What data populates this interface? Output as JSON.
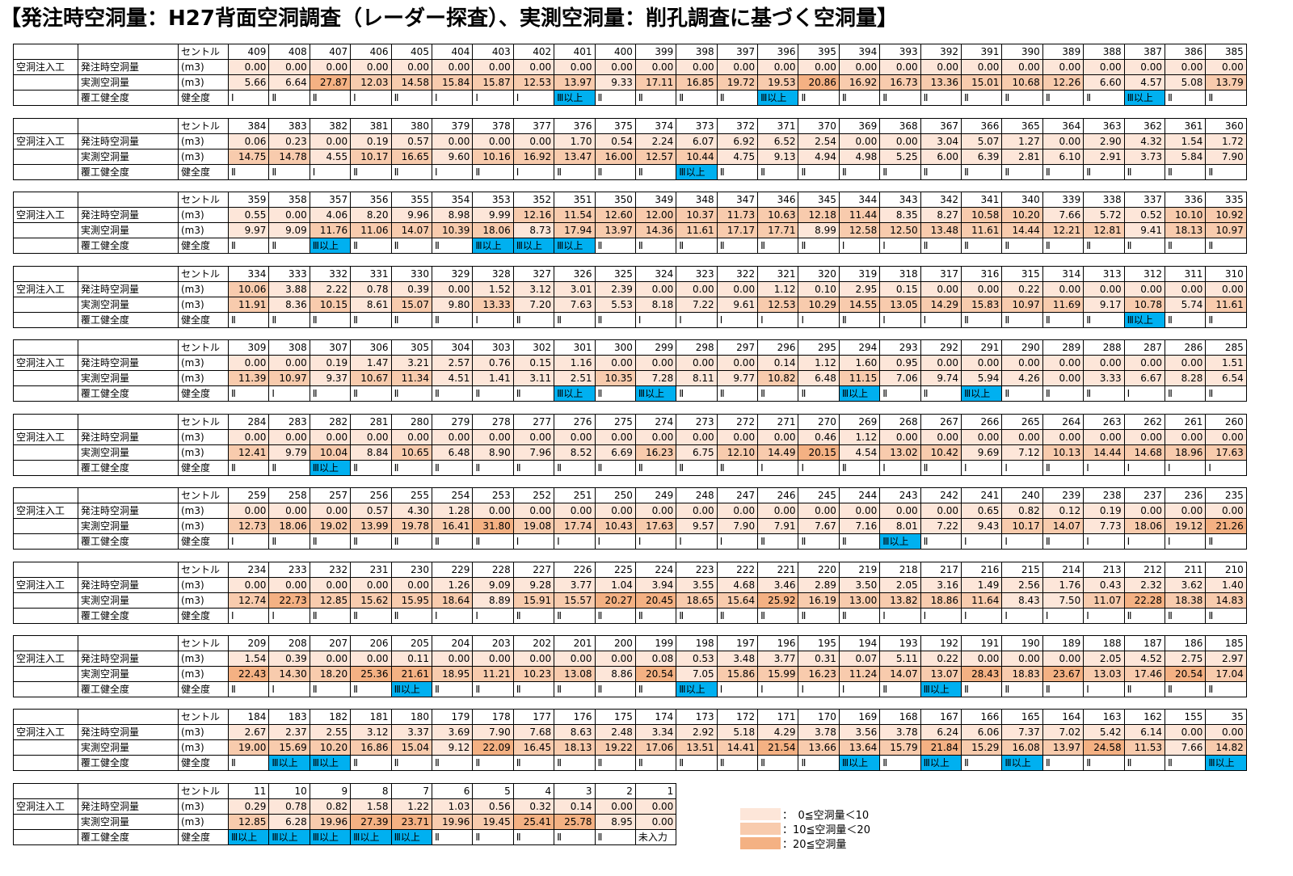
{
  "title": "【発注時空洞量：H27背面空洞調査（レーダー探査）、実測空洞量：削孔調査に基づく空洞量】",
  "labels": {
    "group": "空洞注入工",
    "order": "発注時空洞量",
    "actual": "実測空洞量",
    "health": "覆工健全度",
    "col_center": "セントル",
    "col_unit": "(m3)",
    "col_health": "健全度"
  },
  "legend": [
    {
      "label": "：　0≦空洞量＜10",
      "color": "#fde6d9"
    },
    {
      "label": "：10≦空洞量＜20",
      "color": "#f8cbad"
    },
    {
      "label": "：20≦空洞量",
      "color": "#f4b183"
    }
  ],
  "blocks": [
    {
      "centers": [
        "409",
        "408",
        "407",
        "406",
        "405",
        "404",
        "403",
        "402",
        "401",
        "400",
        "399",
        "398",
        "397",
        "396",
        "395",
        "394",
        "393",
        "392",
        "391",
        "390",
        "389",
        "388",
        "387",
        "386",
        "385"
      ],
      "order": [
        "0.00",
        "0.00",
        "0.00",
        "0.00",
        "0.00",
        "0.00",
        "0.00",
        "0.00",
        "0.00",
        "0.00",
        "0.00",
        "0.00",
        "0.00",
        "0.00",
        "0.00",
        "0.00",
        "0.00",
        "0.00",
        "0.00",
        "0.00",
        "0.00",
        "0.00",
        "0.00",
        "0.00",
        "0.00"
      ],
      "actual": [
        "5.66",
        "6.64",
        "27.87",
        "12.03",
        "14.58",
        "15.84",
        "15.87",
        "12.53",
        "13.97",
        "9.33",
        "17.11",
        "16.85",
        "19.72",
        "19.53",
        "20.86",
        "16.92",
        "16.73",
        "13.36",
        "15.01",
        "10.68",
        "12.26",
        "6.60",
        "4.57",
        "5.08",
        "13.79"
      ],
      "health": [
        "Ⅰ",
        "Ⅱ",
        "Ⅱ",
        "Ⅰ",
        "Ⅱ",
        "Ⅰ",
        "Ⅰ",
        "Ⅰ",
        "Ⅲ以上",
        "Ⅱ",
        "Ⅱ",
        "Ⅱ",
        "Ⅱ",
        "Ⅲ以上",
        "Ⅱ",
        "Ⅱ",
        "Ⅱ",
        "Ⅱ",
        "Ⅱ",
        "Ⅱ",
        "Ⅱ",
        "Ⅱ",
        "Ⅲ以上",
        "Ⅱ",
        "Ⅱ"
      ]
    },
    {
      "centers": [
        "384",
        "383",
        "382",
        "381",
        "380",
        "379",
        "378",
        "377",
        "376",
        "375",
        "374",
        "373",
        "372",
        "371",
        "370",
        "369",
        "368",
        "367",
        "366",
        "365",
        "364",
        "363",
        "362",
        "361",
        "360"
      ],
      "order": [
        "0.06",
        "0.23",
        "0.00",
        "0.19",
        "0.57",
        "0.00",
        "0.00",
        "0.00",
        "1.70",
        "0.54",
        "2.24",
        "6.07",
        "6.92",
        "6.52",
        "2.54",
        "0.00",
        "0.00",
        "3.04",
        "5.07",
        "1.27",
        "0.00",
        "2.90",
        "4.32",
        "1.54",
        "1.72"
      ],
      "actual": [
        "14.75",
        "14.78",
        "4.55",
        "10.17",
        "16.65",
        "9.60",
        "10.16",
        "16.92",
        "13.47",
        "16.00",
        "12.57",
        "10.44",
        "4.75",
        "9.13",
        "4.94",
        "4.98",
        "5.25",
        "6.00",
        "6.39",
        "2.81",
        "6.10",
        "2.91",
        "3.73",
        "5.84",
        "7.90"
      ],
      "health": [
        "Ⅱ",
        "Ⅱ",
        "Ⅰ",
        "Ⅱ",
        "Ⅱ",
        "Ⅰ",
        "Ⅱ",
        "Ⅰ",
        "Ⅱ",
        "Ⅱ",
        "Ⅱ",
        "Ⅲ以上",
        "Ⅱ",
        "Ⅱ",
        "Ⅱ",
        "Ⅱ",
        "Ⅱ",
        "Ⅱ",
        "Ⅱ",
        "Ⅱ",
        "Ⅱ",
        "Ⅱ",
        "Ⅱ",
        "Ⅱ",
        "Ⅱ"
      ]
    },
    {
      "centers": [
        "359",
        "358",
        "357",
        "356",
        "355",
        "354",
        "353",
        "352",
        "351",
        "350",
        "349",
        "348",
        "347",
        "346",
        "345",
        "344",
        "343",
        "342",
        "341",
        "340",
        "339",
        "338",
        "337",
        "336",
        "335"
      ],
      "order": [
        "0.55",
        "0.00",
        "4.06",
        "8.20",
        "9.96",
        "8.98",
        "9.99",
        "12.16",
        "11.54",
        "12.60",
        "12.00",
        "10.37",
        "11.73",
        "10.63",
        "12.18",
        "11.44",
        "8.35",
        "8.27",
        "10.58",
        "10.20",
        "7.66",
        "5.72",
        "0.52",
        "10.10",
        "10.92"
      ],
      "actual": [
        "9.97",
        "9.09",
        "11.76",
        "11.06",
        "14.07",
        "10.39",
        "18.06",
        "8.73",
        "17.94",
        "13.97",
        "14.36",
        "11.61",
        "17.17",
        "17.71",
        "8.99",
        "12.58",
        "12.50",
        "13.48",
        "11.61",
        "14.44",
        "12.21",
        "12.81",
        "9.41",
        "18.13",
        "10.97"
      ],
      "health": [
        "Ⅱ",
        "Ⅱ",
        "Ⅲ以上",
        "Ⅱ",
        "Ⅱ",
        "Ⅱ",
        "Ⅲ以上",
        "Ⅲ以上",
        "Ⅲ以上",
        "Ⅱ",
        "Ⅱ",
        "Ⅱ",
        "Ⅱ",
        "Ⅱ",
        "Ⅱ",
        "Ⅰ",
        "Ⅰ",
        "Ⅱ",
        "Ⅱ",
        "Ⅱ",
        "Ⅱ",
        "Ⅱ",
        "Ⅱ",
        "Ⅱ",
        "Ⅱ"
      ]
    },
    {
      "centers": [
        "334",
        "333",
        "332",
        "331",
        "330",
        "329",
        "328",
        "327",
        "326",
        "325",
        "324",
        "323",
        "322",
        "321",
        "320",
        "319",
        "318",
        "317",
        "316",
        "315",
        "314",
        "313",
        "312",
        "311",
        "310"
      ],
      "order": [
        "10.06",
        "3.88",
        "2.22",
        "0.78",
        "0.39",
        "0.00",
        "1.52",
        "3.12",
        "3.01",
        "2.39",
        "0.00",
        "0.00",
        "0.00",
        "1.12",
        "0.10",
        "2.95",
        "0.15",
        "0.00",
        "0.00",
        "0.22",
        "0.00",
        "0.00",
        "0.00",
        "0.00",
        "0.00"
      ],
      "actual": [
        "11.91",
        "8.36",
        "10.15",
        "8.61",
        "15.07",
        "9.80",
        "13.33",
        "7.20",
        "7.63",
        "5.53",
        "8.18",
        "7.22",
        "9.61",
        "12.53",
        "10.29",
        "14.55",
        "13.05",
        "14.29",
        "15.83",
        "10.97",
        "11.69",
        "9.17",
        "10.78",
        "5.74",
        "11.61"
      ],
      "health": [
        "Ⅱ",
        "Ⅱ",
        "Ⅱ",
        "Ⅱ",
        "Ⅱ",
        "Ⅱ",
        "Ⅰ",
        "Ⅱ",
        "Ⅱ",
        "Ⅱ",
        "Ⅰ",
        "Ⅰ",
        "Ⅰ",
        "Ⅰ",
        "Ⅰ",
        "Ⅱ",
        "Ⅰ",
        "Ⅰ",
        "Ⅱ",
        "Ⅱ",
        "Ⅱ",
        "Ⅱ",
        "Ⅲ以上",
        "Ⅱ",
        "Ⅱ"
      ]
    },
    {
      "centers": [
        "309",
        "308",
        "307",
        "306",
        "305",
        "304",
        "303",
        "302",
        "301",
        "300",
        "299",
        "298",
        "297",
        "296",
        "295",
        "294",
        "293",
        "292",
        "291",
        "290",
        "289",
        "288",
        "287",
        "286",
        "285"
      ],
      "order": [
        "0.00",
        "0.00",
        "0.19",
        "1.47",
        "3.21",
        "2.57",
        "0.76",
        "0.15",
        "1.16",
        "0.00",
        "0.00",
        "0.00",
        "0.00",
        "0.14",
        "1.12",
        "1.60",
        "0.95",
        "0.00",
        "0.00",
        "0.00",
        "0.00",
        "0.00",
        "0.00",
        "0.00",
        "1.51"
      ],
      "actual": [
        "11.39",
        "10.97",
        "9.37",
        "10.67",
        "11.34",
        "4.51",
        "1.41",
        "3.11",
        "2.51",
        "10.35",
        "7.28",
        "8.11",
        "9.77",
        "10.82",
        "6.48",
        "11.15",
        "7.06",
        "9.74",
        "5.94",
        "4.26",
        "0.00",
        "3.33",
        "6.67",
        "8.28",
        "6.54"
      ],
      "health": [
        "Ⅱ",
        "Ⅰ",
        "Ⅱ",
        "Ⅱ",
        "Ⅱ",
        "Ⅱ",
        "Ⅱ",
        "Ⅱ",
        "Ⅲ以上",
        "Ⅱ",
        "Ⅲ以上",
        "Ⅱ",
        "Ⅱ",
        "Ⅱ",
        "Ⅱ",
        "Ⅲ以上",
        "Ⅱ",
        "Ⅱ",
        "Ⅲ以上",
        "Ⅱ",
        "Ⅱ",
        "Ⅱ",
        "Ⅰ",
        "Ⅱ",
        "Ⅱ"
      ]
    },
    {
      "centers": [
        "284",
        "283",
        "282",
        "281",
        "280",
        "279",
        "278",
        "277",
        "276",
        "275",
        "274",
        "273",
        "272",
        "271",
        "270",
        "269",
        "268",
        "267",
        "266",
        "265",
        "264",
        "263",
        "262",
        "261",
        "260"
      ],
      "order": [
        "0.00",
        "0.00",
        "0.00",
        "0.00",
        "0.00",
        "0.00",
        "0.00",
        "0.00",
        "0.00",
        "0.00",
        "0.00",
        "0.00",
        "0.00",
        "0.00",
        "0.46",
        "1.12",
        "0.00",
        "0.00",
        "0.00",
        "0.00",
        "0.00",
        "0.00",
        "0.00",
        "0.00",
        "0.00"
      ],
      "actual": [
        "12.41",
        "9.79",
        "10.04",
        "8.84",
        "10.65",
        "6.48",
        "8.90",
        "7.96",
        "8.52",
        "6.69",
        "16.23",
        "6.75",
        "12.10",
        "14.49",
        "20.15",
        "4.54",
        "13.02",
        "10.42",
        "9.69",
        "7.12",
        "10.13",
        "14.44",
        "14.68",
        "18.96",
        "17.63"
      ],
      "health": [
        "Ⅱ",
        "Ⅱ",
        "Ⅲ以上",
        "Ⅱ",
        "Ⅱ",
        "Ⅱ",
        "Ⅱ",
        "Ⅱ",
        "Ⅱ",
        "Ⅱ",
        "Ⅱ",
        "Ⅱ",
        "Ⅱ",
        "Ⅰ",
        "Ⅰ",
        "Ⅱ",
        "Ⅰ",
        "Ⅱ",
        "Ⅰ",
        "Ⅰ",
        "Ⅱ",
        "Ⅰ",
        "Ⅰ",
        "Ⅰ",
        "Ⅰ"
      ]
    },
    {
      "centers": [
        "259",
        "258",
        "257",
        "256",
        "255",
        "254",
        "253",
        "252",
        "251",
        "250",
        "249",
        "248",
        "247",
        "246",
        "245",
        "244",
        "243",
        "242",
        "241",
        "240",
        "239",
        "238",
        "237",
        "236",
        "235"
      ],
      "order": [
        "0.00",
        "0.00",
        "0.00",
        "0.57",
        "4.30",
        "1.28",
        "0.00",
        "0.00",
        "0.00",
        "0.00",
        "0.00",
        "0.00",
        "0.00",
        "0.00",
        "0.00",
        "0.00",
        "0.00",
        "0.00",
        "0.65",
        "0.82",
        "0.12",
        "0.19",
        "0.00",
        "0.00",
        "0.00"
      ],
      "actual": [
        "12.73",
        "18.06",
        "19.02",
        "13.99",
        "19.78",
        "16.41",
        "31.80",
        "19.08",
        "17.74",
        "10.43",
        "17.63",
        "9.57",
        "7.90",
        "7.91",
        "7.67",
        "7.16",
        "8.01",
        "7.22",
        "9.43",
        "10.17",
        "14.07",
        "7.73",
        "18.06",
        "19.12",
        "21.26"
      ],
      "health": [
        "Ⅰ",
        "Ⅱ",
        "Ⅱ",
        "Ⅱ",
        "Ⅱ",
        "Ⅱ",
        "Ⅱ",
        "Ⅰ",
        "Ⅰ",
        "Ⅰ",
        "Ⅰ",
        "Ⅰ",
        "Ⅰ",
        "Ⅱ",
        "Ⅱ",
        "Ⅱ",
        "Ⅲ以上",
        "Ⅱ",
        "Ⅰ",
        "Ⅰ",
        "Ⅱ",
        "Ⅰ",
        "Ⅰ",
        "Ⅰ",
        "Ⅱ"
      ]
    },
    {
      "centers": [
        "234",
        "233",
        "232",
        "231",
        "230",
        "229",
        "228",
        "227",
        "226",
        "225",
        "224",
        "223",
        "222",
        "221",
        "220",
        "219",
        "218",
        "217",
        "216",
        "215",
        "214",
        "213",
        "212",
        "211",
        "210"
      ],
      "order": [
        "0.00",
        "0.00",
        "0.00",
        "0.00",
        "0.00",
        "1.26",
        "9.09",
        "9.28",
        "3.77",
        "1.04",
        "3.94",
        "3.55",
        "4.68",
        "3.46",
        "2.89",
        "3.50",
        "2.05",
        "3.16",
        "1.49",
        "2.56",
        "1.76",
        "0.43",
        "2.32",
        "3.62",
        "1.40"
      ],
      "actual": [
        "12.74",
        "22.73",
        "12.85",
        "15.62",
        "15.95",
        "18.64",
        "8.89",
        "15.91",
        "15.57",
        "20.27",
        "20.45",
        "18.65",
        "15.64",
        "25.92",
        "16.19",
        "13.00",
        "13.82",
        "18.86",
        "11.64",
        "8.43",
        "7.50",
        "11.07",
        "22.28",
        "18.38",
        "14.83"
      ],
      "health": [
        "Ⅰ",
        "Ⅰ",
        "Ⅱ",
        "Ⅱ",
        "Ⅱ",
        "Ⅰ",
        "Ⅰ",
        "Ⅱ",
        "Ⅱ",
        "Ⅱ",
        "Ⅱ",
        "Ⅱ",
        "Ⅱ",
        "Ⅱ",
        "Ⅱ",
        "Ⅱ",
        "Ⅰ",
        "Ⅰ",
        "Ⅰ",
        "Ⅰ",
        "Ⅰ",
        "Ⅰ",
        "Ⅱ",
        "Ⅱ",
        "Ⅱ"
      ]
    },
    {
      "centers": [
        "209",
        "208",
        "207",
        "206",
        "205",
        "204",
        "203",
        "202",
        "201",
        "200",
        "199",
        "198",
        "197",
        "196",
        "195",
        "194",
        "193",
        "192",
        "191",
        "190",
        "189",
        "188",
        "187",
        "186",
        "185"
      ],
      "order": [
        "1.54",
        "0.39",
        "0.00",
        "0.00",
        "0.11",
        "0.00",
        "0.00",
        "0.00",
        "0.00",
        "0.00",
        "0.08",
        "0.53",
        "3.48",
        "3.77",
        "0.31",
        "0.07",
        "5.11",
        "0.22",
        "0.00",
        "0.00",
        "0.00",
        "2.05",
        "4.52",
        "2.75",
        "2.97"
      ],
      "actual": [
        "22.43",
        "14.30",
        "18.20",
        "25.36",
        "21.61",
        "18.95",
        "11.21",
        "10.23",
        "13.08",
        "8.86",
        "20.54",
        "7.05",
        "15.86",
        "15.99",
        "16.23",
        "11.24",
        "14.07",
        "13.07",
        "28.43",
        "18.83",
        "23.67",
        "13.03",
        "17.46",
        "20.54",
        "17.04"
      ],
      "health": [
        "Ⅱ",
        "Ⅰ",
        "Ⅱ",
        "Ⅱ",
        "Ⅲ以上",
        "Ⅱ",
        "Ⅱ",
        "Ⅱ",
        "Ⅱ",
        "Ⅱ",
        "Ⅱ",
        "Ⅲ以上",
        "Ⅰ",
        "Ⅰ",
        "Ⅰ",
        "Ⅰ",
        "Ⅱ",
        "Ⅲ以上",
        "Ⅱ",
        "Ⅱ",
        "Ⅱ",
        "Ⅰ",
        "Ⅱ",
        "Ⅱ",
        "Ⅱ"
      ]
    },
    {
      "centers": [
        "184",
        "183",
        "182",
        "181",
        "180",
        "179",
        "178",
        "177",
        "176",
        "175",
        "174",
        "173",
        "172",
        "171",
        "170",
        "169",
        "168",
        "167",
        "166",
        "165",
        "164",
        "163",
        "162",
        "155",
        "35"
      ],
      "order": [
        "2.67",
        "2.37",
        "2.55",
        "3.12",
        "3.37",
        "3.69",
        "7.90",
        "7.68",
        "8.63",
        "2.48",
        "3.34",
        "2.92",
        "5.18",
        "4.29",
        "3.78",
        "3.56",
        "3.78",
        "6.24",
        "6.06",
        "7.37",
        "7.02",
        "5.42",
        "6.14",
        "0.00",
        "0.00"
      ],
      "actual": [
        "19.00",
        "15.69",
        "10.20",
        "16.86",
        "15.04",
        "9.12",
        "22.09",
        "16.45",
        "18.13",
        "19.22",
        "17.06",
        "13.51",
        "14.41",
        "21.54",
        "13.66",
        "13.64",
        "15.79",
        "21.84",
        "15.29",
        "16.08",
        "13.97",
        "24.58",
        "11.53",
        "7.66",
        "14.82"
      ],
      "health": [
        "Ⅱ",
        "Ⅲ以上",
        "Ⅲ以上",
        "Ⅱ",
        "Ⅱ",
        "Ⅱ",
        "Ⅱ",
        "Ⅱ",
        "Ⅱ",
        "Ⅱ",
        "Ⅱ",
        "Ⅱ",
        "Ⅱ",
        "Ⅱ",
        "Ⅱ",
        "Ⅲ以上",
        "Ⅱ",
        "Ⅲ以上",
        "Ⅱ",
        "Ⅲ以上",
        "Ⅱ",
        "Ⅱ",
        "Ⅱ",
        "Ⅱ",
        "Ⅲ以上"
      ]
    },
    {
      "centers": [
        "11",
        "10",
        "9",
        "8",
        "7",
        "6",
        "5",
        "4",
        "3",
        "2",
        "1"
      ],
      "order": [
        "0.29",
        "0.78",
        "0.82",
        "1.58",
        "1.22",
        "1.03",
        "0.56",
        "0.32",
        "0.14",
        "0.00",
        "0.00"
      ],
      "actual": [
        "12.85",
        "6.28",
        "19.96",
        "27.39",
        "23.71",
        "19.96",
        "19.45",
        "25.41",
        "25.78",
        "8.95",
        "0.00"
      ],
      "health": [
        "Ⅲ以上",
        "Ⅲ以上",
        "Ⅲ以上",
        "Ⅲ以上",
        "Ⅲ以上",
        "Ⅱ",
        "Ⅱ",
        "Ⅱ",
        "Ⅱ",
        "Ⅱ",
        "未入力"
      ]
    }
  ]
}
